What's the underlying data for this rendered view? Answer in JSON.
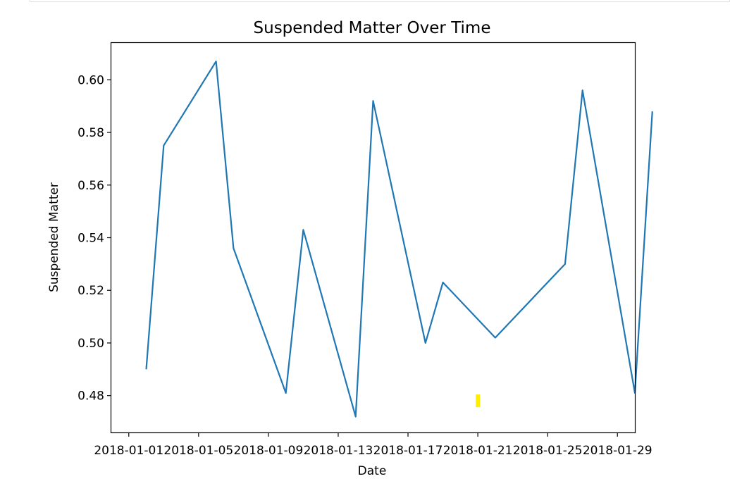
{
  "chart_data": {
    "type": "line",
    "title": "Suspended Matter Over Time",
    "xlabel": "Date",
    "ylabel": "Suspended Matter",
    "x_tick_labels": [
      "2018-01-01",
      "2018-01-05",
      "2018-01-09",
      "2018-01-13",
      "2018-01-17",
      "2018-01-21",
      "2018-01-25",
      "2018-01-29"
    ],
    "y_tick_labels": [
      "0.48",
      "0.50",
      "0.52",
      "0.54",
      "0.56",
      "0.58",
      "0.60"
    ],
    "y_ticks": [
      0.48,
      0.5,
      0.52,
      0.54,
      0.56,
      0.58,
      0.6
    ],
    "xlim": [
      "2017-12-31",
      "2018-01-30"
    ],
    "ylim": [
      0.466,
      0.614
    ],
    "grid": false,
    "series": [
      {
        "color": "#1f77b4",
        "points": [
          {
            "x": "2018-01-02",
            "y": 0.49
          },
          {
            "x": "2018-01-03",
            "y": 0.575
          },
          {
            "x": "2018-01-06",
            "y": 0.607
          },
          {
            "x": "2018-01-07",
            "y": 0.536
          },
          {
            "x": "2018-01-10",
            "y": 0.481
          },
          {
            "x": "2018-01-11",
            "y": 0.543
          },
          {
            "x": "2018-01-14",
            "y": 0.472
          },
          {
            "x": "2018-01-15",
            "y": 0.592
          },
          {
            "x": "2018-01-18",
            "y": 0.5
          },
          {
            "x": "2018-01-19",
            "y": 0.523
          },
          {
            "x": "2018-01-22",
            "y": 0.502
          },
          {
            "x": "2018-01-26",
            "y": 0.53
          },
          {
            "x": "2018-01-27",
            "y": 0.596
          },
          {
            "x": "2018-01-30",
            "y": 0.481
          },
          {
            "x": "2018-01-31",
            "y": 0.588
          }
        ]
      }
    ],
    "annotations": [
      {
        "type": "marker",
        "color": "#ffee00",
        "x": "2018-01-21",
        "y": 0.478
      }
    ]
  }
}
